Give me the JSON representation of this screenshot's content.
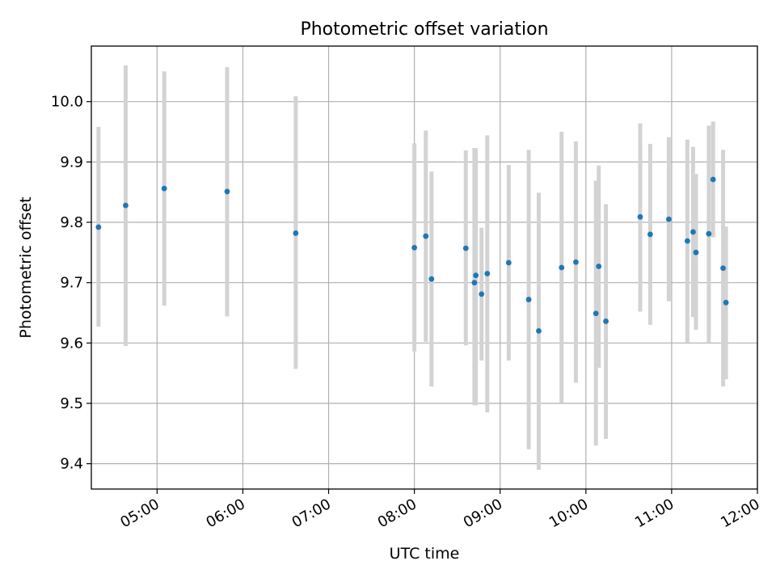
{
  "chart_data": {
    "type": "scatter",
    "title": "Photometric offset variation",
    "xlabel": "UTC time",
    "ylabel": "Photometric offset",
    "x_tick_labels": [
      "05:00",
      "06:00",
      "07:00",
      "08:00",
      "09:00",
      "10:00",
      "11:00",
      "12:00"
    ],
    "y_tick_labels": [
      "9.4",
      "9.5",
      "9.6",
      "9.7",
      "9.8",
      "9.9",
      "10.0"
    ],
    "xlim": [
      "04:14",
      "12:00"
    ],
    "ylim": [
      9.358,
      10.092
    ],
    "grid": true,
    "point_color": "#1f77b4",
    "errorbar_color": "#d3d3d3",
    "series": [
      {
        "points": [
          {
            "x": "04:19",
            "y": 9.792,
            "low": 9.627,
            "high": 9.958
          },
          {
            "x": "04:38",
            "y": 9.828,
            "low": 9.595,
            "high": 10.06
          },
          {
            "x": "05:05",
            "y": 9.856,
            "low": 9.662,
            "high": 10.05
          },
          {
            "x": "05:49",
            "y": 9.851,
            "low": 9.644,
            "high": 10.057
          },
          {
            "x": "06:37",
            "y": 9.782,
            "low": 9.557,
            "high": 10.009
          },
          {
            "x": "08:00",
            "y": 9.758,
            "low": 9.586,
            "high": 9.931
          },
          {
            "x": "08:08",
            "y": 9.777,
            "low": 9.602,
            "high": 9.952
          },
          {
            "x": "08:12",
            "y": 9.706,
            "low": 9.528,
            "high": 9.884
          },
          {
            "x": "08:36",
            "y": 9.757,
            "low": 9.596,
            "high": 9.919
          },
          {
            "x": "08:42",
            "y": 9.7,
            "low": 9.497,
            "high": 9.923
          },
          {
            "x": "08:43",
            "y": 9.712,
            "low": 9.497,
            "high": 9.923
          },
          {
            "x": "08:47",
            "y": 9.681,
            "low": 9.571,
            "high": 9.791
          },
          {
            "x": "08:51",
            "y": 9.715,
            "low": 9.485,
            "high": 9.944
          },
          {
            "x": "09:06",
            "y": 9.733,
            "low": 9.571,
            "high": 9.895
          },
          {
            "x": "09:20",
            "y": 9.672,
            "low": 9.424,
            "high": 9.92
          },
          {
            "x": "09:27",
            "y": 9.62,
            "low": 9.39,
            "high": 9.849
          },
          {
            "x": "09:43",
            "y": 9.725,
            "low": 9.501,
            "high": 9.95
          },
          {
            "x": "09:53",
            "y": 9.734,
            "low": 9.534,
            "high": 9.934
          },
          {
            "x": "10:07",
            "y": 9.649,
            "low": 9.43,
            "high": 9.869
          },
          {
            "x": "10:09",
            "y": 9.727,
            "low": 9.559,
            "high": 9.894
          },
          {
            "x": "10:14",
            "y": 9.636,
            "low": 9.441,
            "high": 9.83
          },
          {
            "x": "10:38",
            "y": 9.809,
            "low": 9.652,
            "high": 9.964
          },
          {
            "x": "10:45",
            "y": 9.78,
            "low": 9.63,
            "high": 9.93
          },
          {
            "x": "10:58",
            "y": 9.805,
            "low": 9.669,
            "high": 9.941
          },
          {
            "x": "11:11",
            "y": 9.769,
            "low": 9.601,
            "high": 9.937
          },
          {
            "x": "11:15",
            "y": 9.784,
            "low": 9.643,
            "high": 9.925
          },
          {
            "x": "11:17",
            "y": 9.75,
            "low": 9.622,
            "high": 9.88
          },
          {
            "x": "11:26",
            "y": 9.781,
            "low": 9.601,
            "high": 9.96
          },
          {
            "x": "11:29",
            "y": 9.871,
            "low": 9.775,
            "high": 9.967
          },
          {
            "x": "11:36",
            "y": 9.724,
            "low": 9.528,
            "high": 9.92
          },
          {
            "x": "11:38",
            "y": 9.667,
            "low": 9.54,
            "high": 9.793
          }
        ]
      }
    ]
  }
}
